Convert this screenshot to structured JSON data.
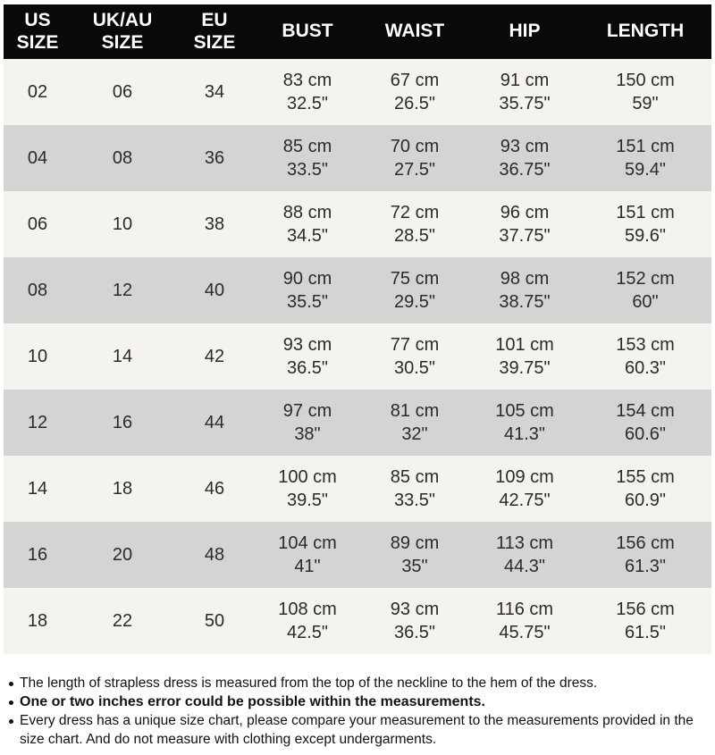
{
  "colors": {
    "header_bg": "#0b0908",
    "header_text": "#ffffff",
    "row_light_bg": "#f4f3f0",
    "row_dark_bg": "#d3d5d2",
    "body_text": "#2d2a28",
    "note_text": "#121212"
  },
  "chart_data": {
    "type": "table",
    "title": "Dress size chart (US / UK-AU / EU sizes with body measurements)",
    "columns": [
      "US\nSIZE",
      "UK/AU\nSIZE",
      "EU\nSIZE",
      "BUST",
      "WAIST",
      "HIP",
      "LENGTH"
    ],
    "rows": [
      [
        "02",
        "06",
        "34",
        "83 cm\n32.5\"",
        "67 cm\n26.5\"",
        "91 cm\n35.75\"",
        "150 cm\n59\""
      ],
      [
        "04",
        "08",
        "36",
        "85 cm\n33.5\"",
        "70 cm\n27.5\"",
        "93 cm\n36.75\"",
        "151 cm\n59.4\""
      ],
      [
        "06",
        "10",
        "38",
        "88 cm\n34.5\"",
        "72 cm\n28.5\"",
        "96 cm\n37.75\"",
        "151 cm\n59.6\""
      ],
      [
        "08",
        "12",
        "40",
        "90 cm\n35.5\"",
        "75 cm\n29.5\"",
        "98 cm\n38.75\"",
        "152 cm\n60\""
      ],
      [
        "10",
        "14",
        "42",
        "93 cm\n36.5\"",
        "77 cm\n30.5\"",
        "101 cm\n39.75\"",
        "153 cm\n60.3\""
      ],
      [
        "12",
        "16",
        "44",
        "97 cm\n38\"",
        "81 cm\n32\"",
        "105 cm\n41.3\"",
        "154 cm\n60.6\""
      ],
      [
        "14",
        "18",
        "46",
        "100 cm\n39.5\"",
        "85 cm\n33.5\"",
        "109 cm\n42.75\"",
        "155 cm\n60.9\""
      ],
      [
        "16",
        "20",
        "48",
        "104 cm\n41\"",
        "89 cm\n35\"",
        "113 cm\n44.3\"",
        "156 cm\n61.3\""
      ],
      [
        "18",
        "22",
        "50",
        "108 cm\n42.5\"",
        "93 cm\n36.5\"",
        "116 cm\n45.75\"",
        "156 cm\n61.5\""
      ]
    ]
  },
  "notes": [
    {
      "text": "The length of strapless dress is measured from the top of the neckline to the hem of the dress."
    },
    {
      "text": "One or two inches error could be possible within the measurements."
    },
    {
      "text": "Every dress has a unique size chart, please compare your measurement to the measurements provided in the size chart. And do not measure with clothing except undergarments."
    }
  ]
}
